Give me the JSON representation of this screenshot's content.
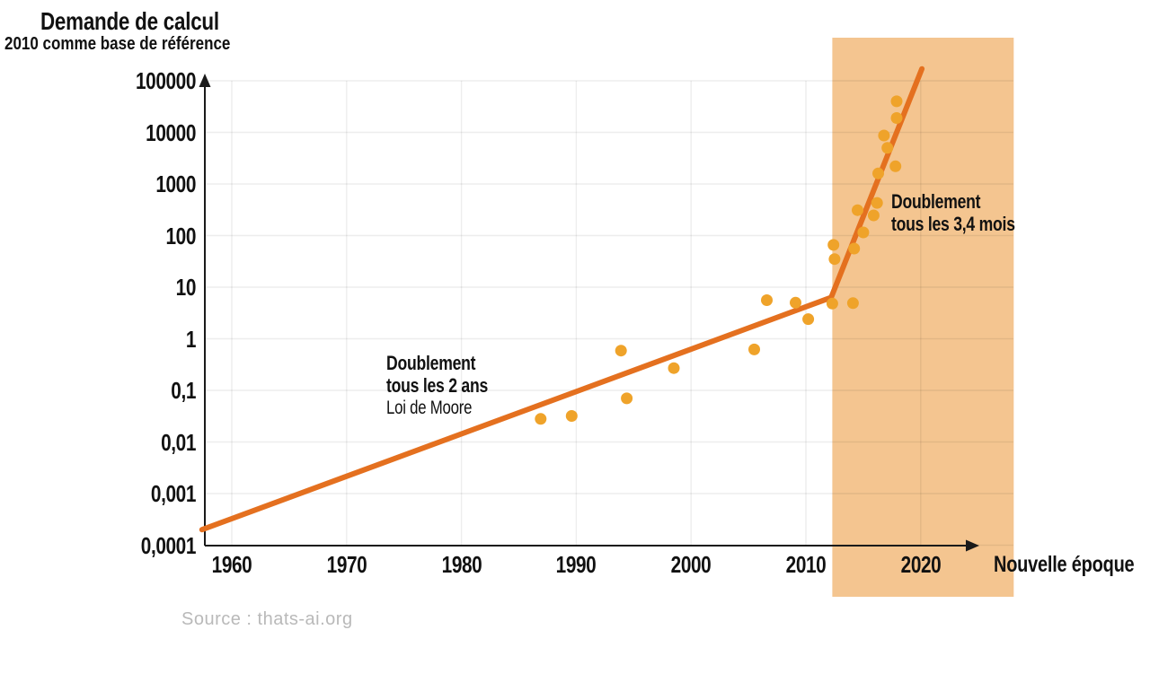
{
  "title": "Demande de calcul",
  "subtitle": "2010 comme base de référence",
  "x_axis_title": "Nouvelle époque",
  "source": "Source : thats-ai.org",
  "annotations": {
    "moore": {
      "line1": "Doublement",
      "line2": "tous les 2 ans",
      "line3": "Loi de Moore"
    },
    "new_era": {
      "line1": "Doublement",
      "line2": "tous les 3,4 mois"
    }
  },
  "colors": {
    "trend_line": "#e4701f",
    "points": "#efa32a",
    "highlight_band": "#f4c590",
    "grid": "rgba(0,0,0,0.07)",
    "axis": "#1a1a1a",
    "text": "#111111",
    "source_text": "#b9b9b9"
  },
  "chart_data": {
    "type": "scatter",
    "title": "Demande de calcul",
    "subtitle": "2010 comme base de référence",
    "xlabel": "Nouvelle époque",
    "ylabel": "",
    "y_scale": "log",
    "grid": true,
    "xlim": [
      1957.6,
      2024.7
    ],
    "ylim": [
      0.0001,
      100000
    ],
    "x_ticks": [
      1960,
      1970,
      1980,
      1990,
      2000,
      2010,
      2020
    ],
    "y_tick_values": [
      100000,
      10000,
      1000,
      100,
      10,
      1,
      0.1,
      0.01,
      0.001,
      0.0001
    ],
    "y_tick_labels": [
      "100000",
      "10000",
      "1000",
      "100",
      "10",
      "1",
      "0,1",
      "0,01",
      "0,001",
      "0,0001"
    ],
    "points": [
      [
        1986.9,
        0.028
      ],
      [
        1989.6,
        0.032
      ],
      [
        1993.9,
        0.59
      ],
      [
        1994.4,
        0.07
      ],
      [
        1998.5,
        0.27
      ],
      [
        2005.5,
        0.62
      ],
      [
        2006.6,
        5.6
      ],
      [
        2009.1,
        5.0
      ],
      [
        2010.2,
        2.4
      ],
      [
        2012.3,
        4.8
      ],
      [
        2012.4,
        66
      ],
      [
        2012.5,
        35
      ],
      [
        2014.1,
        4.9
      ],
      [
        2014.2,
        56
      ],
      [
        2014.5,
        310
      ],
      [
        2015.0,
        115
      ],
      [
        2015.9,
        246
      ],
      [
        2016.2,
        430
      ],
      [
        2016.3,
        1600
      ],
      [
        2016.8,
        8700
      ],
      [
        2017.1,
        5000
      ],
      [
        2017.8,
        2200
      ],
      [
        2017.9,
        40000
      ],
      [
        2017.9,
        19000
      ]
    ],
    "trend_line": [
      [
        1957.4,
        0.0002
      ],
      [
        2012.2,
        6.3
      ],
      [
        2020.1,
        170000
      ]
    ],
    "highlight_band": {
      "from_year": 2012.3,
      "to_year": 2028.1
    }
  }
}
